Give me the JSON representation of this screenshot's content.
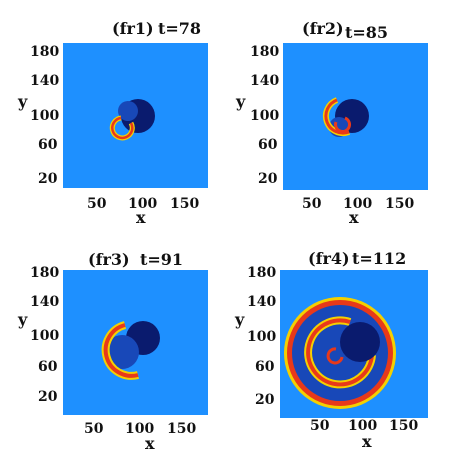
{
  "panels": [
    {
      "id": "fr1",
      "label": "(fr1)",
      "time": "t=78",
      "xlabel": "x",
      "ylabel": "y",
      "yticks": [
        "180",
        "140",
        "100",
        "60",
        "20"
      ],
      "xticks": [
        "50",
        "100",
        "150"
      ],
      "colors": {
        "background": "#1e90ff",
        "core": "#0a1b6e",
        "wave_front": "#e8391a",
        "wave_yellow": "#f4d000"
      }
    },
    {
      "id": "fr2",
      "label": "(fr2)",
      "time": "t=85",
      "xlabel": "x",
      "ylabel": "y",
      "yticks": [
        "180",
        "140",
        "100",
        "60",
        "20"
      ],
      "xticks": [
        "50",
        "100",
        "150"
      ],
      "colors": {
        "background": "#1e90ff",
        "core": "#0a1b6e",
        "wave_front": "#e8391a",
        "wave_yellow": "#f4d000"
      }
    },
    {
      "id": "fr3",
      "label": "(fr3)",
      "time": "t=91",
      "xlabel": "x",
      "ylabel": "y",
      "yticks": [
        "180",
        "140",
        "100",
        "60",
        "20"
      ],
      "xticks": [
        "50",
        "100",
        "150"
      ],
      "colors": {
        "background": "#1e90ff",
        "core": "#0a1b6e",
        "wave_front": "#e8391a",
        "wave_yellow": "#f4d000"
      }
    },
    {
      "id": "fr4",
      "label": "(fr4)",
      "time": "t=112",
      "xlabel": "x",
      "ylabel": "y",
      "yticks": [
        "180",
        "140",
        "100",
        "60",
        "20"
      ],
      "xticks": [
        "50",
        "100",
        "150"
      ],
      "colors": {
        "background": "#1e90ff",
        "core": "#0a1b6e",
        "wave_front": "#e8391a",
        "wave_yellow": "#f4d000"
      }
    }
  ]
}
